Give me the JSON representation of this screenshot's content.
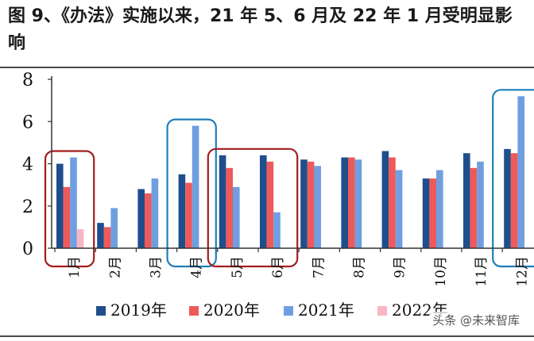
{
  "title": "图 9、《办法》实施以来，21 年 5、6 月及 22 年 1 月受明显影响",
  "watermark": "头条 @未来智库",
  "colors": {
    "s2019": "#1f4e8c",
    "s2020": "#ee5a5a",
    "s2021": "#6f9fe0",
    "s2022": "#f7b6c2",
    "box_red": "#a31d1d",
    "box_blue": "#1d7fb8"
  },
  "chart_data": {
    "type": "bar",
    "categories": [
      "1月",
      "2月",
      "3月",
      "4月",
      "5月",
      "6月",
      "7月",
      "8月",
      "9月",
      "10月",
      "11月",
      "12月"
    ],
    "series": [
      {
        "name": "2019年",
        "values": [
          4.0,
          1.2,
          2.8,
          3.5,
          4.4,
          4.4,
          4.2,
          4.3,
          4.6,
          3.3,
          4.5,
          4.7
        ]
      },
      {
        "name": "2020年",
        "values": [
          2.9,
          1.0,
          2.6,
          3.1,
          3.8,
          4.1,
          4.1,
          4.3,
          4.3,
          3.3,
          3.8,
          4.5
        ]
      },
      {
        "name": "2021年",
        "values": [
          4.3,
          1.9,
          3.3,
          5.8,
          2.9,
          1.7,
          3.9,
          4.2,
          3.7,
          3.7,
          4.1,
          7.2
        ]
      },
      {
        "name": "2022年",
        "values": [
          0.9,
          null,
          null,
          null,
          null,
          null,
          null,
          null,
          null,
          null,
          null,
          null
        ]
      }
    ],
    "ylim": [
      0,
      8
    ],
    "yticks": [
      "0",
      "2",
      "4",
      "6",
      "8"
    ],
    "grid": false,
    "legend": "bottom",
    "highlights": [
      {
        "categories": [
          "1月"
        ],
        "color": "red"
      },
      {
        "categories": [
          "4月"
        ],
        "color": "blue"
      },
      {
        "categories": [
          "5月",
          "6月"
        ],
        "color": "red"
      },
      {
        "categories": [
          "12月"
        ],
        "color": "blue"
      }
    ]
  }
}
